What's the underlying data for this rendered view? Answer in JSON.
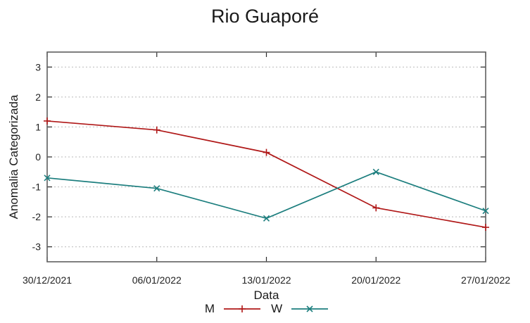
{
  "chart_data": {
    "type": "line",
    "title": "Rio Guaporé",
    "xlabel": "Data",
    "ylabel": "Anomalia Categorizada",
    "categories": [
      "30/12/2021",
      "06/01/2022",
      "13/01/2022",
      "20/01/2022",
      "27/01/2022"
    ],
    "series": [
      {
        "name": "M",
        "color": "#b01818",
        "marker": "plus",
        "values": [
          1.2,
          0.9,
          0.15,
          -1.7,
          -2.35
        ]
      },
      {
        "name": "W",
        "color": "#1c7e7e",
        "marker": "x",
        "values": [
          -0.7,
          -1.05,
          -2.05,
          -0.5,
          -1.8
        ]
      }
    ],
    "yticks": [
      -3,
      -2,
      -1,
      0,
      1,
      2,
      3
    ],
    "ylim": [
      -3.5,
      3.5
    ],
    "grid": "horizontal-dashed",
    "legend_position": "bottom-center"
  },
  "colors": {
    "frame": "#5f5f5f",
    "grid": "#b9b9b9",
    "tick_mark": "#2a2a2a",
    "text": "#1f1f1f"
  }
}
